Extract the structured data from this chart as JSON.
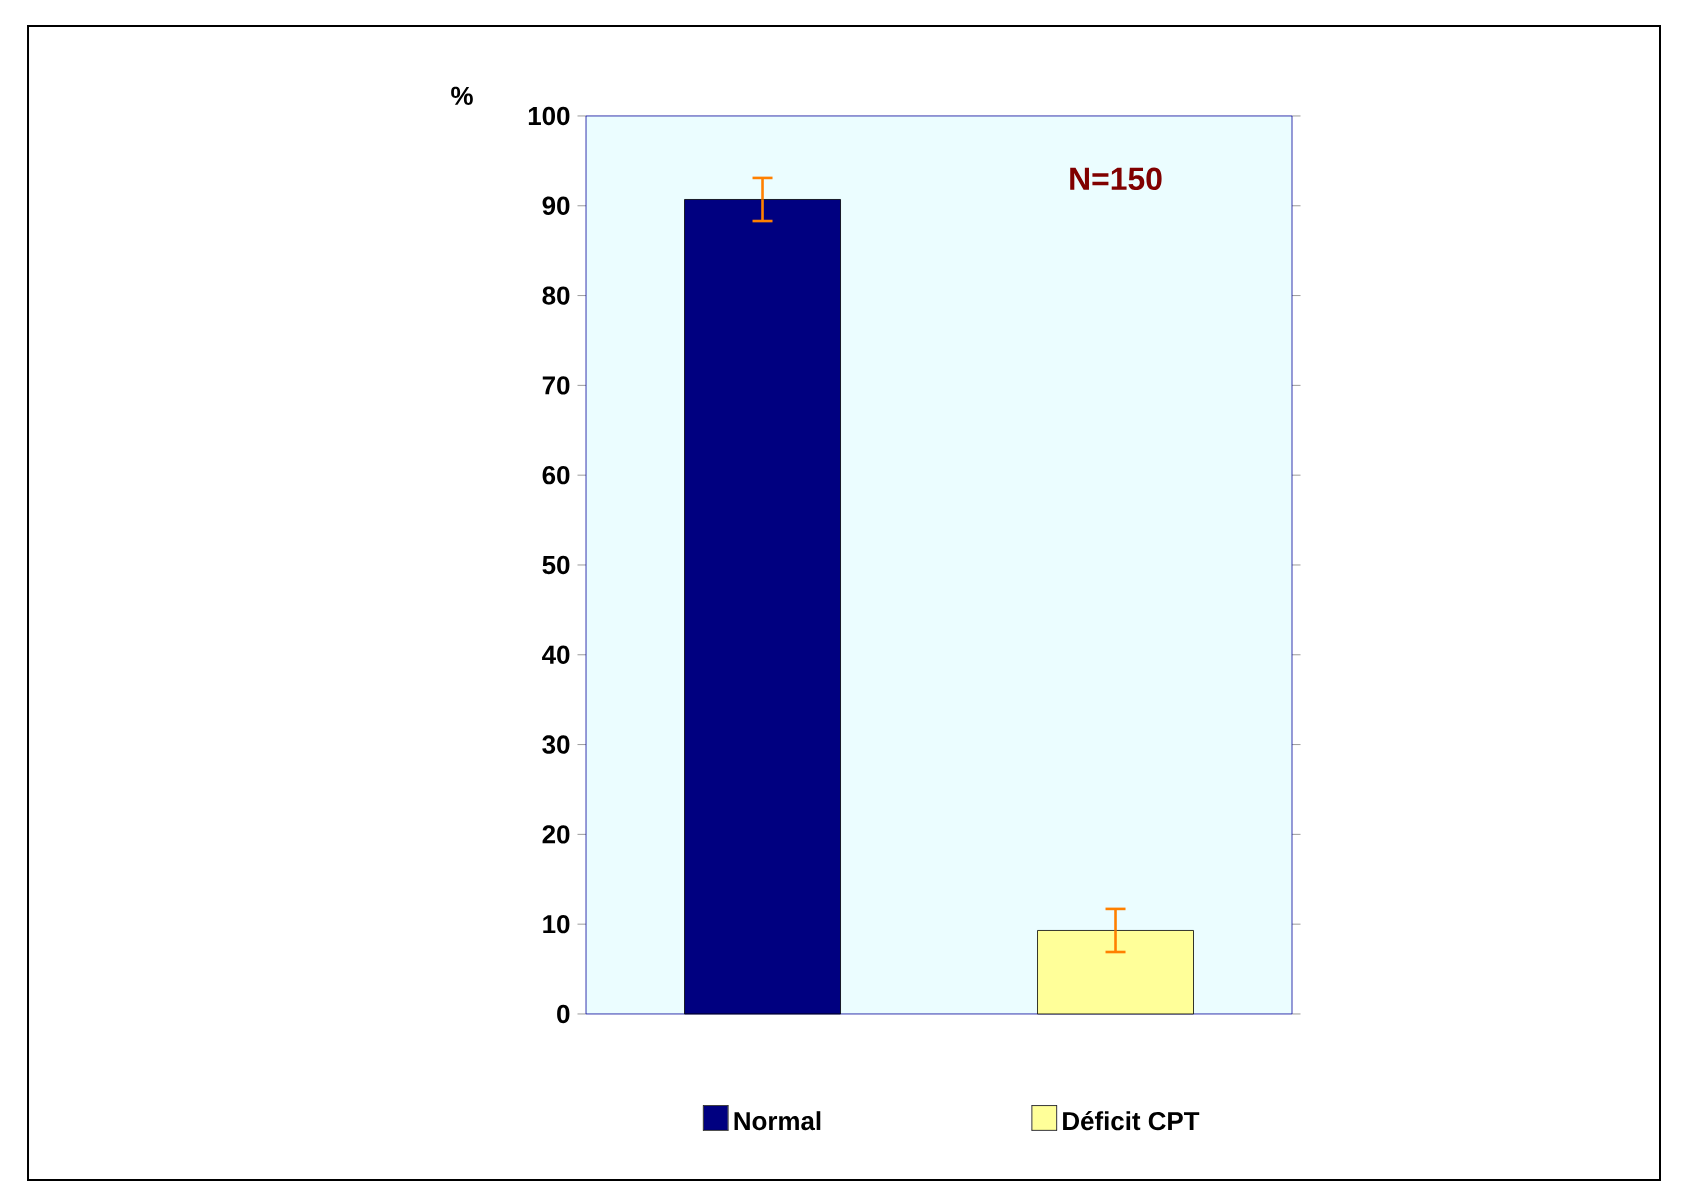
{
  "chart_data": {
    "type": "bar",
    "ylabel": "%",
    "categories": [
      "Normal",
      "Déficit CPT"
    ],
    "values": [
      90.7,
      9.3
    ],
    "colors": [
      "#000080",
      "#ffff99"
    ],
    "errors": [
      2.4,
      2.4
    ],
    "ylim": [
      0,
      100
    ],
    "yticks": [
      0,
      10,
      20,
      30,
      40,
      50,
      60,
      70,
      80,
      90,
      100
    ],
    "annotations": [
      "N=150"
    ],
    "grid": false
  }
}
